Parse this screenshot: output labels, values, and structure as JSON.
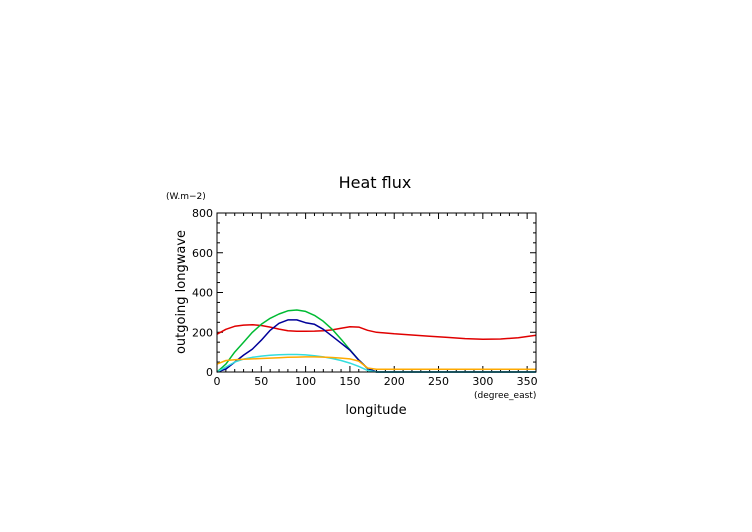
{
  "chart_data": {
    "type": "line",
    "title": "Heat flux",
    "xlabel": "longitude",
    "ylabel": "outgoing longwave",
    "xunit": "(degree_east)",
    "yunit": "(W.m−2)",
    "xlim": [
      0,
      360
    ],
    "ylim": [
      0,
      800
    ],
    "xticks": [
      0,
      50,
      100,
      150,
      200,
      250,
      300,
      350
    ],
    "yticks": [
      0,
      200,
      400,
      600,
      800
    ],
    "grid": false,
    "x": [
      0,
      10,
      20,
      30,
      40,
      50,
      60,
      70,
      80,
      90,
      100,
      110,
      120,
      130,
      140,
      150,
      160,
      170,
      180,
      190,
      200,
      220,
      240,
      260,
      280,
      300,
      320,
      340,
      360
    ],
    "series": [
      {
        "color": "#e00000",
        "values": [
          190,
          215,
          230,
          236,
          238,
          234,
          226,
          216,
          208,
          205,
          205,
          206,
          208,
          212,
          220,
          228,
          226,
          210,
          200,
          196,
          192,
          186,
          180,
          174,
          168,
          165,
          166,
          172,
          185
        ]
      },
      {
        "color": "#00bb33",
        "values": [
          0,
          40,
          100,
          150,
          200,
          240,
          270,
          292,
          308,
          312,
          305,
          285,
          255,
          215,
          165,
          112,
          60,
          18,
          0,
          0,
          0,
          0,
          0,
          0,
          0,
          0,
          0,
          0,
          0
        ]
      },
      {
        "color": "#000099",
        "values": [
          0,
          15,
          50,
          85,
          115,
          160,
          210,
          245,
          262,
          262,
          248,
          240,
          215,
          180,
          145,
          110,
          60,
          18,
          0,
          0,
          0,
          0,
          0,
          0,
          0,
          0,
          0,
          0,
          0
        ]
      },
      {
        "color": "#33dddd",
        "values": [
          0,
          25,
          50,
          65,
          74,
          80,
          84,
          87,
          88,
          88,
          86,
          82,
          76,
          68,
          58,
          45,
          28,
          8,
          0,
          0,
          0,
          0,
          0,
          0,
          0,
          0,
          0,
          0,
          0
        ]
      },
      {
        "color": "#ffaa00",
        "values": [
          40,
          58,
          62,
          64,
          66,
          68,
          70,
          72,
          74,
          75,
          76,
          76,
          75,
          73,
          70,
          66,
          55,
          20,
          14,
          14,
          14,
          14,
          14,
          14,
          14,
          14,
          14,
          14,
          14
        ]
      }
    ]
  }
}
